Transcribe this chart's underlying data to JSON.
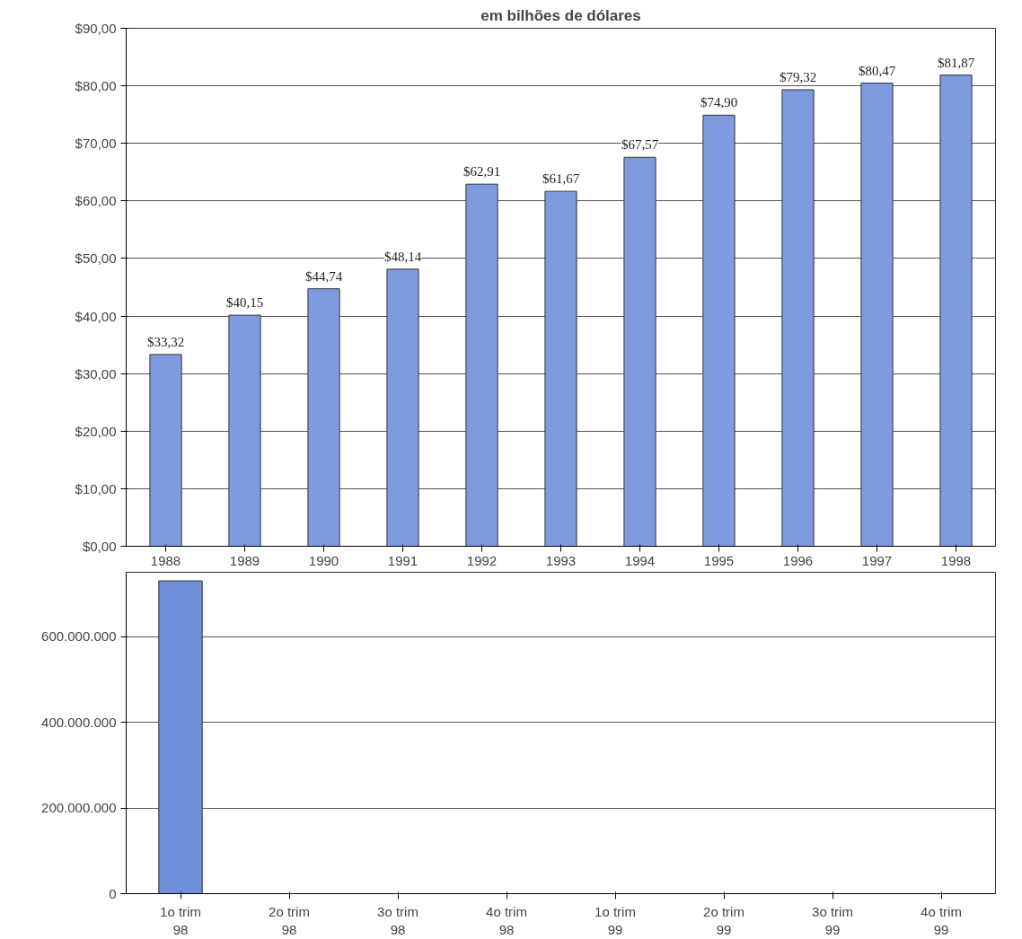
{
  "chart_data": [
    {
      "type": "bar",
      "title": "em bilhões de dólares",
      "categories": [
        "1988",
        "1989",
        "1990",
        "1991",
        "1992",
        "1993",
        "1994",
        "1995",
        "1996",
        "1997",
        "1998"
      ],
      "values": [
        33.32,
        40.15,
        44.74,
        48.14,
        62.91,
        61.67,
        67.57,
        74.9,
        79.32,
        80.47,
        81.87
      ],
      "value_labels": [
        "$33,32",
        "$40,15",
        "$44,74",
        "$48,14",
        "$62,91",
        "$61,67",
        "$67,57",
        "$74,90",
        "$79,32",
        "$80,47",
        "$81,87"
      ],
      "color": "#7f9be0",
      "ylim": [
        0,
        90
      ],
      "yticks": [
        {
          "value": 0,
          "label": "$0,00"
        },
        {
          "value": 10,
          "label": "$10,00"
        },
        {
          "value": 20,
          "label": "$20,00"
        },
        {
          "value": 30,
          "label": "$30,00"
        },
        {
          "value": 40,
          "label": "$40,00"
        },
        {
          "value": 50,
          "label": "$50,00"
        },
        {
          "value": 60,
          "label": "$60,00"
        },
        {
          "value": 70,
          "label": "$70,00"
        },
        {
          "value": 80,
          "label": "$80,00"
        },
        {
          "value": 90,
          "label": "$90,00"
        }
      ],
      "grid": "y"
    },
    {
      "type": "bar",
      "categories": [
        "1o trim\n98",
        "2o trim\n98",
        "3o trim\n98",
        "4o trim\n98",
        "1o trim\n99",
        "2o trim\n99",
        "3o trim\n99",
        "4o trim\n99"
      ],
      "values": [
        730000000,
        null,
        null,
        null,
        null,
        null,
        null,
        null
      ],
      "color": "#6f8fd8",
      "ylim": [
        0,
        750000000
      ],
      "yticks": [
        {
          "value": 0,
          "label": "0"
        },
        {
          "value": 200000000,
          "label": "200.000.000"
        },
        {
          "value": 400000000,
          "label": "400.000.000"
        },
        {
          "value": 600000000,
          "label": "600.000.000"
        }
      ],
      "grid": "y"
    }
  ]
}
